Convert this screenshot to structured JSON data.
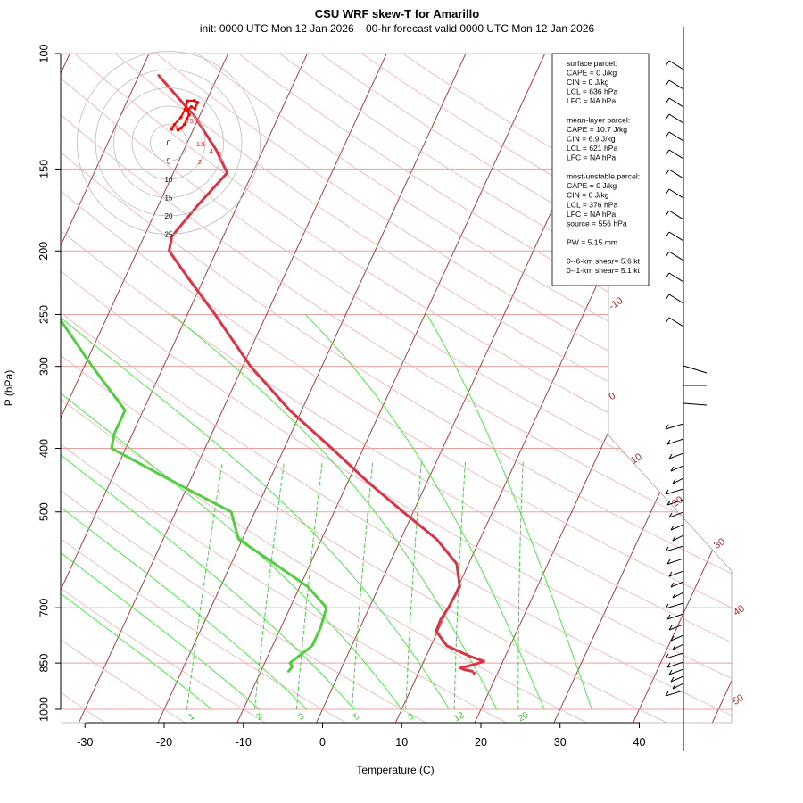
{
  "header": {
    "title": "CSU WRF skew-T for Amarillo",
    "subtitle": "init: 0000 UTC Mon 12 Jan 2026    00-hr forecast valid 0000 UTC Mon 12 Jan 2026"
  },
  "stats": [
    "surface parcel:",
    "CAPE = 0 J/kg",
    "CIN = 0 J/kg",
    "LCL = 636 hPa",
    "LFC = NA hPa",
    "",
    "mean-layer parcel:",
    "CAPE = 10.7 J/kg",
    "CIN = 6.9 J/kg",
    "LCL = 621 hPa",
    "LFC = NA hPa",
    "",
    "most-unstable parcel:",
    "CAPE = 0 J/kg",
    "CIN = 0 J/kg",
    "LCL = 376 hPa",
    "LFC = NA hPa",
    "source = 556 hPa",
    "",
    "PW =  5.15 mm",
    "",
    "0--6-km shear= 5.6 kt",
    "0--1-km shear= 5.1 kt"
  ],
  "colors": {
    "temperature": "#dd3344",
    "dewpoint": "#55cc44",
    "isotherm": "#a52a2a",
    "isobar": "#e8a0a0",
    "dry_adiabat": "#e8b0b0",
    "moist_adiabat": "#33ee33",
    "mixing_ratio": "#33cc33",
    "hodograph": "#ff0000"
  },
  "chart_data": {
    "type": "skew-t",
    "xlabel": "Temperature (C)",
    "ylabel": "P (hPa)",
    "xlim": [
      -33,
      45
    ],
    "pressure_ticks": [
      100,
      150,
      200,
      250,
      300,
      400,
      500,
      700,
      850,
      1000
    ],
    "temperature_ticks": [
      -30,
      -20,
      -10,
      0,
      10,
      20,
      30,
      40
    ],
    "isotherm_labels": [
      -10,
      0,
      10,
      20,
      30,
      40,
      50
    ],
    "mixing_ratio_labels": [
      "1",
      "2",
      "3",
      "5",
      "8",
      "12",
      "20"
    ],
    "temperature_profile": [
      {
        "p": 875,
        "t": 16.7
      },
      {
        "p": 870,
        "t": 15.6
      },
      {
        "p": 865,
        "t": 15.0
      },
      {
        "p": 855,
        "t": 16.5
      },
      {
        "p": 845,
        "t": 17.6
      },
      {
        "p": 830,
        "t": 15.5
      },
      {
        "p": 800,
        "t": 12.0
      },
      {
        "p": 760,
        "t": 9.8
      },
      {
        "p": 730,
        "t": 9.7
      },
      {
        "p": 700,
        "t": 10.0
      },
      {
        "p": 650,
        "t": 10.2
      },
      {
        "p": 600,
        "t": 8.5
      },
      {
        "p": 550,
        "t": 4.5
      },
      {
        "p": 500,
        "t": -1.3
      },
      {
        "p": 450,
        "t": -7.5
      },
      {
        "p": 400,
        "t": -14.0
      },
      {
        "p": 350,
        "t": -21.5
      },
      {
        "p": 300,
        "t": -29.0
      },
      {
        "p": 250,
        "t": -36.5
      },
      {
        "p": 220,
        "t": -42.0
      },
      {
        "p": 200,
        "t": -46.0
      },
      {
        "p": 190,
        "t": -46.5
      },
      {
        "p": 170,
        "t": -45.0
      },
      {
        "p": 152,
        "t": -43.2
      },
      {
        "p": 140,
        "t": -46.0
      },
      {
        "p": 125,
        "t": -50.5
      },
      {
        "p": 108,
        "t": -57.5
      }
    ],
    "dewpoint_profile": [
      {
        "p": 875,
        "t": -6.5
      },
      {
        "p": 860,
        "t": -6.3
      },
      {
        "p": 850,
        "t": -6.8
      },
      {
        "p": 800,
        "t": -5.0
      },
      {
        "p": 750,
        "t": -5.0
      },
      {
        "p": 700,
        "t": -5.4
      },
      {
        "p": 650,
        "t": -9.0
      },
      {
        "p": 600,
        "t": -14.5
      },
      {
        "p": 550,
        "t": -20.5
      },
      {
        "p": 500,
        "t": -23.0
      },
      {
        "p": 450,
        "t": -32.0
      },
      {
        "p": 400,
        "t": -41.8
      },
      {
        "p": 380,
        "t": -42.3
      },
      {
        "p": 350,
        "t": -42.3
      },
      {
        "p": 300,
        "t": -49.0
      },
      {
        "p": 250,
        "t": -56.5
      },
      {
        "p": 200,
        "t": -62.5
      },
      {
        "p": 180,
        "t": -64.0
      }
    ],
    "hodograph": {
      "ring_labels": [
        "0",
        "5",
        "10",
        "15",
        "20",
        "25"
      ],
      "point_labels": [
        "0.5",
        "0.0",
        "1.5",
        "2",
        "4",
        "5"
      ],
      "u": [
        2.6,
        3.4,
        4.3,
        5.0,
        5.6,
        5.1,
        6.2,
        7.2,
        7.9,
        7.0,
        5.2,
        4.5,
        3.4,
        1.6,
        0.8
      ],
      "v": [
        -3.5,
        -4.0,
        -5.0,
        -6.6,
        -7.6,
        -8.9,
        -9.8,
        -9.3,
        -11.0,
        -11.5,
        -11.4,
        -9.2,
        -7.0,
        -5.0,
        -3.7
      ]
    }
  }
}
